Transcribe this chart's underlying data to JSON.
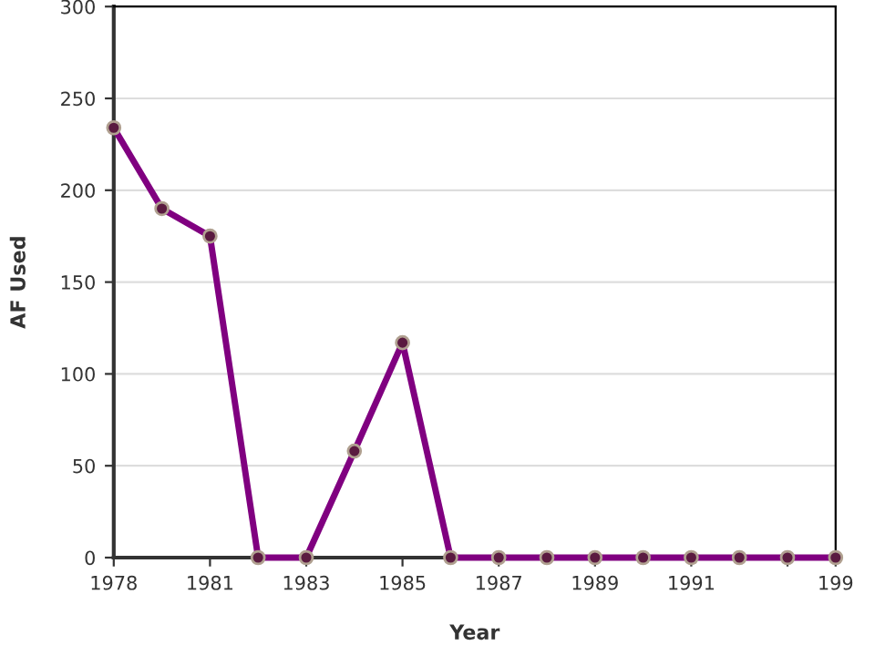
{
  "chart_data": {
    "type": "line",
    "xlabel": "Year",
    "ylabel": "AF Used",
    "categories": [
      "1978",
      null,
      "1981",
      null,
      "1983",
      null,
      "1985",
      null,
      "1987",
      null,
      "1989",
      null,
      "1991",
      null,
      null,
      "199"
    ],
    "series": [
      {
        "color": "#800080",
        "values": [
          234,
          190,
          175,
          0,
          0,
          58,
          117,
          0,
          0,
          0,
          0,
          0,
          0,
          0,
          0,
          0
        ]
      }
    ],
    "ylim": [
      0,
      300
    ],
    "yticks": [
      0,
      50,
      100,
      150,
      200,
      250,
      300
    ],
    "grid": "y",
    "marker": "circle",
    "line_style": "solid",
    "legend": false
  }
}
